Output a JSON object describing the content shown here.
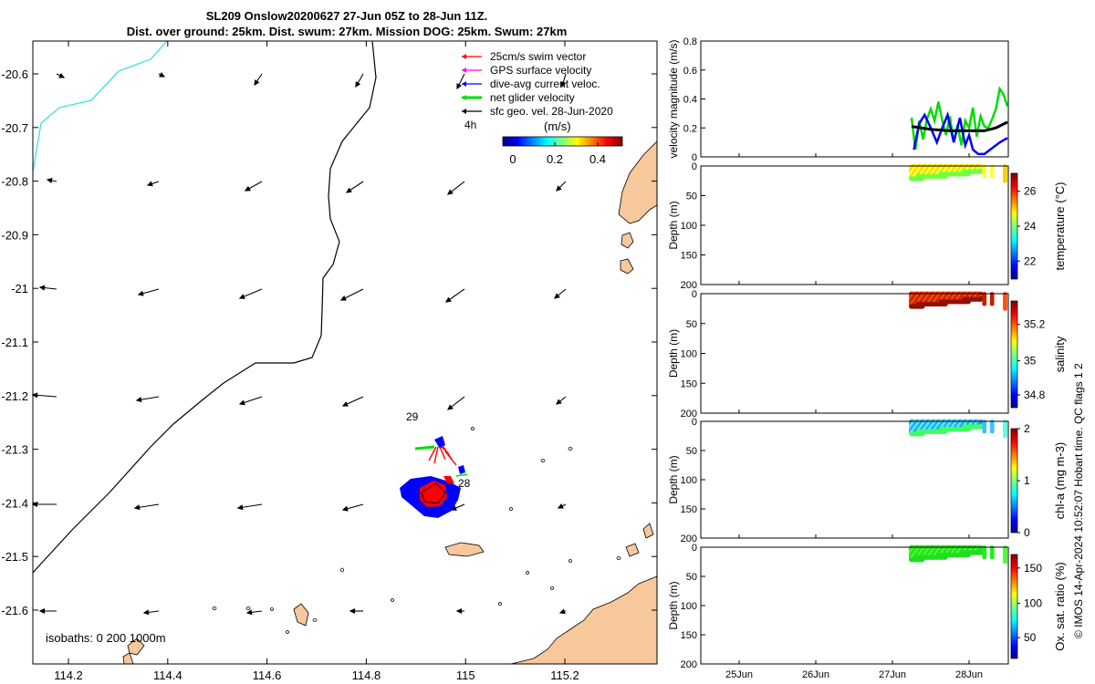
{
  "title": {
    "line1": "SL209 Onslow20200627 27-Jun 05Z to 28-Jun 11Z.",
    "line2": "Dist. over ground: 25km. Dist. swum: 27km. Mission DOG: 25km. Swum: 27km"
  },
  "colors": {
    "land": "#f7c89b",
    "coast": "#000000",
    "isobath_0": "#40e0e0",
    "isobath_200": "#000000",
    "swim_vector": "#ff0000",
    "gps_velocity": "#ff00ff",
    "dive_avg_current": "#0000ff",
    "net_glider": "#00dd00",
    "sfc_geo": "#000000"
  },
  "map": {
    "x_ticks": [
      "114.2",
      "114.4",
      "114.6",
      "114.8",
      "115",
      "115.2"
    ],
    "y_ticks": [
      "-20.6",
      "-20.7",
      "-20.8",
      "-20.9",
      "-21",
      "-21.1",
      "-21.2",
      "-21.3",
      "-21.4",
      "-21.5",
      "-21.6"
    ],
    "legend": [
      {
        "label": "25cm/s swim vector",
        "color": "#ff0000"
      },
      {
        "label": "GPS surface velocity",
        "color": "#ff00ff"
      },
      {
        "label": "dive-avg current veloc.",
        "color": "#0000ff"
      },
      {
        "label": "net glider velocity",
        "color": "#00dd00"
      },
      {
        "label": "sfc geo. vel. 28-Jun-2020",
        "color": "#000000"
      }
    ],
    "legend_time": "4h",
    "colorbar_label": "(m/s)",
    "colorbar_ticks": [
      "0",
      "0.2",
      "0.4"
    ],
    "day_labels": [
      "29",
      "28"
    ],
    "isobaths_text": "isobaths: 0   200  1000m"
  },
  "chart_data": [
    {
      "type": "line",
      "ylabel": "velocity magnitude (m/s)",
      "ylim": [
        0,
        0.8
      ],
      "y_ticks": [
        "0",
        "0.2",
        "0.4",
        "0.6",
        "0.8"
      ],
      "x_ticks": [
        "25Jun",
        "26Jun",
        "27Jun",
        "28Jun"
      ],
      "series": [
        {
          "color": "#00dd00",
          "x": [
            27.25,
            27.3,
            27.35,
            27.4,
            27.45,
            27.5,
            27.55,
            27.6,
            27.65,
            27.7,
            27.75,
            27.8,
            27.85,
            27.9,
            27.95,
            28.0,
            28.05,
            28.1,
            28.15,
            28.2,
            28.25,
            28.3,
            28.35,
            28.4,
            28.45,
            28.5
          ],
          "y": [
            0.27,
            0.05,
            0.25,
            0.12,
            0.26,
            0.33,
            0.25,
            0.38,
            0.25,
            0.15,
            0.28,
            0.1,
            0.22,
            0.08,
            0.25,
            0.2,
            0.34,
            0.14,
            0.28,
            0.21,
            0.2,
            0.26,
            0.33,
            0.47,
            0.43,
            0.35
          ]
        },
        {
          "color": "#0000ff",
          "x": [
            27.28,
            27.35,
            27.42,
            27.5,
            27.58,
            27.65,
            27.72,
            27.8,
            27.88,
            27.95,
            28.0,
            28.05,
            28.12,
            28.2,
            28.3,
            28.4,
            28.5
          ],
          "y": [
            0.05,
            0.23,
            0.29,
            0.2,
            0.1,
            0.2,
            0.29,
            0.1,
            0.27,
            0.08,
            0.15,
            0.05,
            0.02,
            0.02,
            0.06,
            0.1,
            0.13
          ]
        },
        {
          "color": "#000000",
          "x": [
            27.25,
            27.5,
            27.75,
            28.0,
            28.2,
            28.35,
            28.5
          ],
          "y": [
            0.21,
            0.19,
            0.18,
            0.18,
            0.18,
            0.2,
            0.24
          ]
        }
      ]
    },
    {
      "type": "scatter",
      "ylabel": "Depth (m)",
      "colorbar_label": "temperature (°C)",
      "colorbar_ticks": [
        "22",
        "24",
        "26"
      ],
      "y_ticks": [
        "0",
        "50",
        "100",
        "150",
        "200"
      ],
      "ylim": [
        200,
        0
      ],
      "variable_range": [
        21,
        28
      ]
    },
    {
      "type": "scatter",
      "ylabel": "Depth (m)",
      "colorbar_label": "salinity",
      "colorbar_ticks": [
        "34.8",
        "35",
        "35.2"
      ],
      "y_ticks": [
        "0",
        "50",
        "100",
        "150",
        "200"
      ],
      "ylim": [
        200,
        0
      ],
      "variable_range": [
        34.7,
        35.3
      ]
    },
    {
      "type": "scatter",
      "ylabel": "Depth (m)",
      "colorbar_label": "chl-a (mg m-3)",
      "colorbar_ticks": [
        "0",
        "1",
        "2"
      ],
      "y_ticks": [
        "0",
        "50",
        "100",
        "150",
        "200"
      ],
      "ylim": [
        200,
        0
      ],
      "variable_range": [
        0,
        2
      ]
    },
    {
      "type": "scatter",
      "ylabel": "Depth (m)",
      "colorbar_label": "Ox. sat. ratio (%)",
      "colorbar_ticks": [
        "50",
        "100",
        "150"
      ],
      "y_ticks": [
        "0",
        "50",
        "100",
        "150",
        "200"
      ],
      "ylim": [
        200,
        0
      ],
      "variable_range": [
        20,
        170
      ]
    }
  ],
  "footer": {
    "credit": "© IMOS 14-Apr-2024 10:52:07 Hobart time. QC flags 1  2"
  }
}
